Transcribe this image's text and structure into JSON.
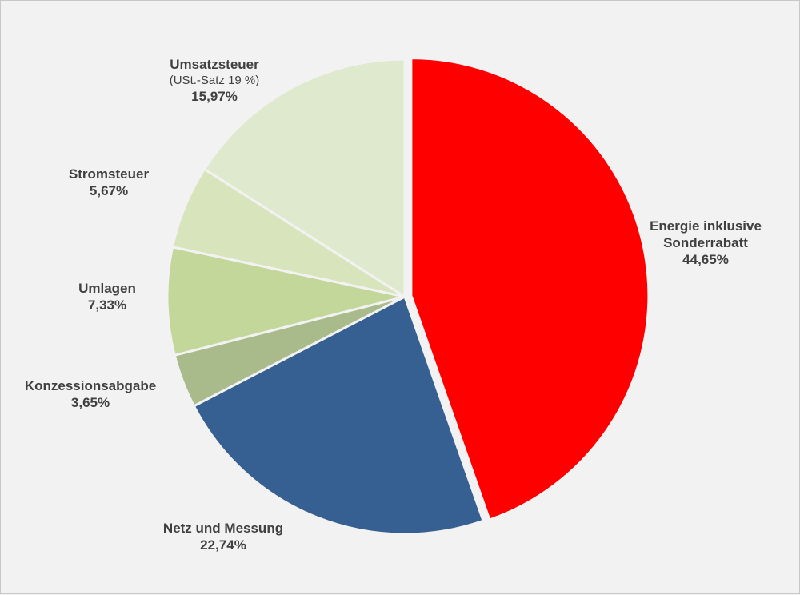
{
  "chart_data": {
    "type": "pie",
    "slices": [
      {
        "label": "Energie inklusive Sonderrabatt",
        "line1": "Energie inklusive",
        "line2": "Sonderrabatt",
        "value": 44.65,
        "value_label": "44,65%",
        "color": "#ff0000"
      },
      {
        "label": "Netz und Messung",
        "line1": "Netz und Messung",
        "value": 22.74,
        "value_label": "22,74%",
        "color": "#366092"
      },
      {
        "label": "Konzessionsabgabe",
        "line1": "Konzessionsabgabe",
        "value": 3.65,
        "value_label": "3,65%",
        "color": "#a9ba8b"
      },
      {
        "label": "Umlagen",
        "line1": "Umlagen",
        "value": 7.33,
        "value_label": "7,33%",
        "color": "#c4d79b"
      },
      {
        "label": "Stromsteuer",
        "line1": "Stromsteuer",
        "value": 5.67,
        "value_label": "5,67%",
        "color": "#d8e4bc"
      },
      {
        "label": "Umsatzsteuer",
        "line1": "Umsatzsteuer",
        "sub": "(USt.-Satz 19 %)",
        "value": 15.97,
        "value_label": "15,97%",
        "color": "#dfe9cd"
      }
    ]
  }
}
